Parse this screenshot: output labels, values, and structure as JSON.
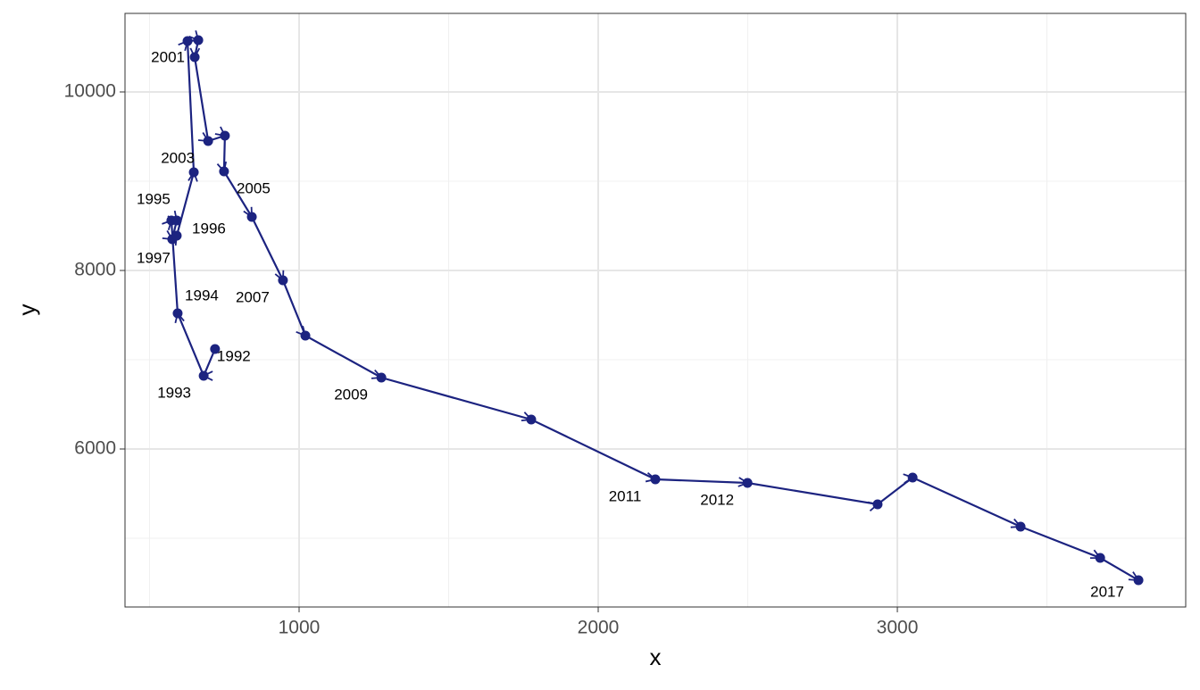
{
  "chart_data": {
    "type": "connected-scatter",
    "color": "#1c2380",
    "x_label": "x",
    "y_label": "y",
    "x": [
      719,
      681,
      594,
      573,
      591,
      576,
      591,
      648,
      627,
      663,
      651,
      696,
      752,
      749,
      842,
      946,
      1021,
      1275,
      1776,
      2191,
      2499,
      2934,
      3051,
      3412,
      3678,
      3806
    ],
    "y": [
      7120,
      6820,
      7520,
      8560,
      8560,
      8350,
      8390,
      9100,
      10570,
      10580,
      10390,
      9450,
      9510,
      9110,
      8600,
      7890,
      7270,
      6800,
      6330,
      5660,
      5620,
      5380,
      5680,
      5130,
      4780,
      4530
    ],
    "labels": [
      "1992",
      "1993",
      "1994",
      "1995",
      "1996",
      "1997",
      null,
      null,
      null,
      "2001",
      null,
      "2003",
      null,
      "2005",
      null,
      "2007",
      null,
      "2009",
      null,
      "2011",
      "2012",
      null,
      null,
      null,
      null,
      "2017"
    ],
    "xlim": [
      418,
      3964
    ],
    "ylim": [
      4230,
      10880
    ],
    "xticks": [
      1000,
      2000,
      3000
    ],
    "yticks": [
      6000,
      8000,
      10000
    ],
    "x_minor_ticks": [
      500,
      1500,
      2500,
      3500
    ],
    "y_minor_ticks": [
      5000,
      7000,
      9000
    ],
    "grid": true
  }
}
